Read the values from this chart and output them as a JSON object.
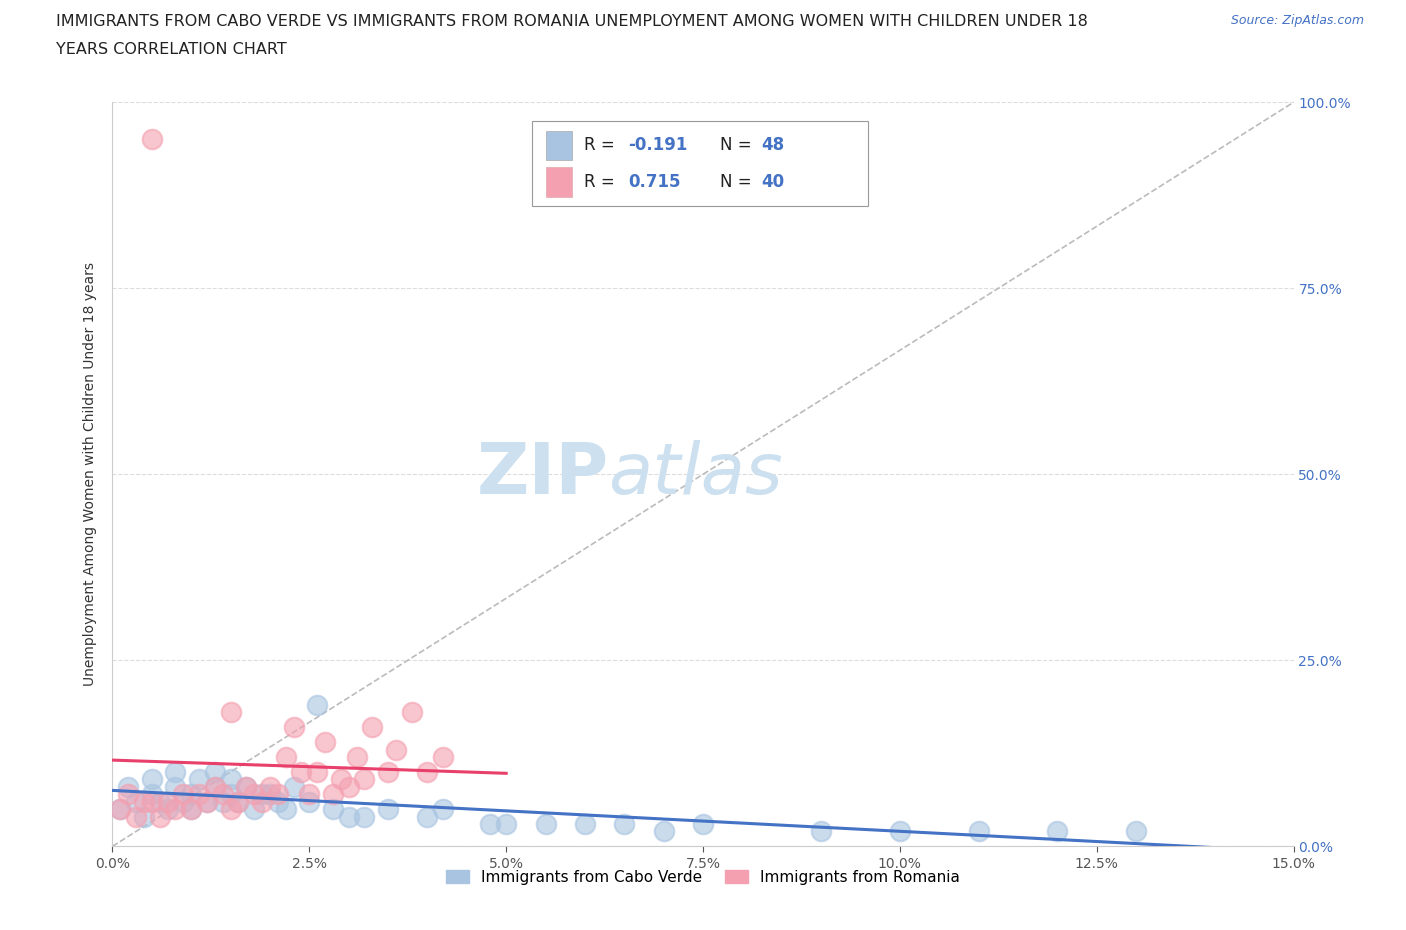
{
  "title_line1": "IMMIGRANTS FROM CABO VERDE VS IMMIGRANTS FROM ROMANIA UNEMPLOYMENT AMONG WOMEN WITH CHILDREN UNDER 18",
  "title_line2": "YEARS CORRELATION CHART",
  "source": "Source: ZipAtlas.com",
  "ylabel": "Unemployment Among Women with Children Under 18 years",
  "xlim": [
    0.0,
    0.15
  ],
  "ylim": [
    0.0,
    1.0
  ],
  "xticks": [
    0.0,
    0.025,
    0.05,
    0.075,
    0.1,
    0.125,
    0.15
  ],
  "xticklabels": [
    "0.0%",
    "2.5%",
    "5.0%",
    "7.5%",
    "10.0%",
    "12.5%",
    "15.0%"
  ],
  "yticks": [
    0.0,
    0.25,
    0.5,
    0.75,
    1.0
  ],
  "yticklabels": [
    "0.0%",
    "25.0%",
    "50.0%",
    "75.0%",
    "100.0%"
  ],
  "cabo_verde_color": "#a8c4e0",
  "romania_color": "#f4a0b0",
  "cabo_verde_line_color": "#4472c4",
  "romania_line_color": "#e8406a",
  "diag_line_color": "#bbbbbb",
  "r_cabo": -0.191,
  "n_cabo": 48,
  "r_romania": 0.715,
  "n_romania": 40,
  "legend_label_cabo": "Immigrants from Cabo Verde",
  "legend_label_romania": "Immigrants from Romania",
  "watermark_zip": "ZIP",
  "watermark_atlas": "atlas",
  "cabo_verde_x": [
    0.001,
    0.002,
    0.003,
    0.004,
    0.005,
    0.005,
    0.006,
    0.007,
    0.008,
    0.008,
    0.009,
    0.01,
    0.01,
    0.011,
    0.012,
    0.013,
    0.013,
    0.014,
    0.015,
    0.015,
    0.016,
    0.017,
    0.018,
    0.019,
    0.02,
    0.021,
    0.022,
    0.023,
    0.025,
    0.026,
    0.028,
    0.03,
    0.032,
    0.035,
    0.04,
    0.042,
    0.048,
    0.05,
    0.055,
    0.06,
    0.065,
    0.07,
    0.075,
    0.09,
    0.1,
    0.11,
    0.12,
    0.13
  ],
  "cabo_verde_y": [
    0.05,
    0.08,
    0.06,
    0.04,
    0.07,
    0.09,
    0.06,
    0.05,
    0.08,
    0.1,
    0.06,
    0.05,
    0.07,
    0.09,
    0.06,
    0.08,
    0.1,
    0.06,
    0.07,
    0.09,
    0.06,
    0.08,
    0.05,
    0.07,
    0.07,
    0.06,
    0.05,
    0.08,
    0.06,
    0.19,
    0.05,
    0.04,
    0.04,
    0.05,
    0.04,
    0.05,
    0.03,
    0.03,
    0.03,
    0.03,
    0.03,
    0.02,
    0.03,
    0.02,
    0.02,
    0.02,
    0.02,
    0.02
  ],
  "romania_x": [
    0.001,
    0.002,
    0.003,
    0.004,
    0.005,
    0.005,
    0.006,
    0.007,
    0.008,
    0.009,
    0.01,
    0.011,
    0.012,
    0.013,
    0.014,
    0.015,
    0.015,
    0.016,
    0.017,
    0.018,
    0.019,
    0.02,
    0.021,
    0.022,
    0.023,
    0.024,
    0.025,
    0.026,
    0.027,
    0.028,
    0.029,
    0.03,
    0.031,
    0.032,
    0.033,
    0.035,
    0.036,
    0.038,
    0.04,
    0.042
  ],
  "romania_y": [
    0.05,
    0.07,
    0.04,
    0.06,
    0.06,
    0.95,
    0.04,
    0.06,
    0.05,
    0.07,
    0.05,
    0.07,
    0.06,
    0.08,
    0.07,
    0.05,
    0.18,
    0.06,
    0.08,
    0.07,
    0.06,
    0.08,
    0.07,
    0.12,
    0.16,
    0.1,
    0.07,
    0.1,
    0.14,
    0.07,
    0.09,
    0.08,
    0.12,
    0.09,
    0.16,
    0.1,
    0.13,
    0.18,
    0.1,
    0.12
  ],
  "title_fontsize": 11.5,
  "axis_label_fontsize": 10,
  "tick_fontsize": 10,
  "watermark_fontsize_zip": 52,
  "watermark_fontsize_atlas": 52,
  "watermark_color": "#cce0f0",
  "source_fontsize": 9,
  "source_color": "#4472c4",
  "ytick_color": "#4472c4",
  "xtick_color": "#555555",
  "background_color": "#ffffff",
  "grid_color": "#dddddd"
}
